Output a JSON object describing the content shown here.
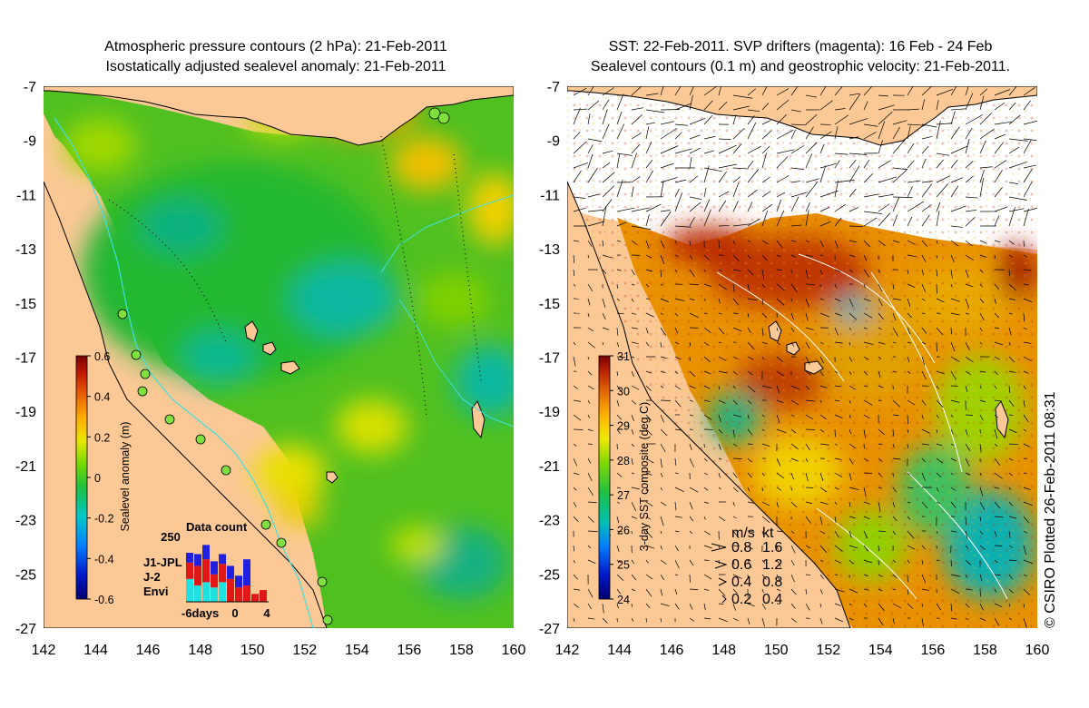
{
  "left_panel": {
    "title_line1": "Atmospheric pressure contours (2 hPa): 21-Feb-2011",
    "title_line2": "Isostatically adjusted sealevel anomaly: 21-Feb-2011",
    "lon_ticks": [
      "142",
      "144",
      "146",
      "148",
      "150",
      "152",
      "154",
      "156",
      "158",
      "160"
    ],
    "lat_ticks": [
      "-7",
      "-9",
      "-11",
      "-13",
      "-15",
      "-17",
      "-19",
      "-21",
      "-23",
      "-25",
      "-27"
    ],
    "colorbar": {
      "label": "Sealevel anomaly (m)",
      "ticks": [
        "0.6",
        "0.4",
        "0.2",
        "0",
        "-0.2",
        "-0.4",
        "-0.6"
      ],
      "range": [
        -0.6,
        0.6
      ]
    },
    "data_count": {
      "title": "Data count",
      "max_label": "250",
      "x_start": "-6days",
      "x_mid": "0",
      "x_end": "4",
      "missions": [
        {
          "name": "J1-JPL",
          "color": "#2020e0"
        },
        {
          "name": "J-2",
          "color": "#e01818"
        },
        {
          "name": "Envi",
          "color": "#20e0e0"
        }
      ],
      "bars": [
        {
          "day": -6,
          "cyan": 0.35,
          "red": 0.25,
          "blue": 0.15
        },
        {
          "day": -5,
          "cyan": 0.25,
          "red": 0.3,
          "blue": 0.18
        },
        {
          "day": -4,
          "cyan": 0.3,
          "red": 0.35,
          "blue": 0.22
        },
        {
          "day": -3,
          "cyan": 0.22,
          "red": 0.2,
          "blue": 0.2
        },
        {
          "day": -2,
          "cyan": 0.3,
          "red": 0.28,
          "blue": 0.15
        },
        {
          "day": -1,
          "cyan": 0.0,
          "red": 0.35,
          "blue": 0.2
        },
        {
          "day": 0,
          "cyan": 0.0,
          "red": 0.22,
          "blue": 0.18
        },
        {
          "day": 1,
          "cyan": 0.0,
          "red": 0.25,
          "blue": 0.4
        },
        {
          "day": 2,
          "cyan": 0.0,
          "red": 0.12,
          "blue": 0.0
        },
        {
          "day": 3,
          "cyan": 0.0,
          "red": 0.18,
          "blue": 0.0
        }
      ]
    }
  },
  "right_panel": {
    "title_line1": "SST: 22-Feb-2011. SVP drifters (magenta): 16 Feb - 24 Feb",
    "title_line2": "Sealevel contours (0.1 m) and geostrophic velocity: 21-Feb-2011.",
    "lon_ticks": [
      "142",
      "144",
      "146",
      "148",
      "150",
      "152",
      "154",
      "156",
      "158",
      "160"
    ],
    "lat_ticks": [
      "-7",
      "-9",
      "-11",
      "-13",
      "-15",
      "-17",
      "-19",
      "-21",
      "-23",
      "-25",
      "-27"
    ],
    "colorbar": {
      "label": "3-day SST composite (deg C)",
      "ticks": [
        "31",
        "30",
        "29",
        "28",
        "27",
        "26",
        "25",
        "24"
      ],
      "range": [
        24,
        31
      ]
    },
    "velocity_legend": {
      "header_ms": "m/s",
      "header_kt": "kt",
      "rows": [
        {
          "ms": "0.8",
          "kt": "1.6"
        },
        {
          "ms": "0.6",
          "kt": "1.2"
        },
        {
          "ms": "0.4",
          "kt": "0.8"
        },
        {
          "ms": "0.2",
          "kt": "0.4"
        }
      ]
    }
  },
  "credit": "© CSIRO Plotted 26-Feb-2011 08:31",
  "colors": {
    "land": "#fbc896",
    "coast_line": "#000000",
    "bathy_contour": "#40e0e0",
    "cloud_mask": "#ffffff"
  }
}
